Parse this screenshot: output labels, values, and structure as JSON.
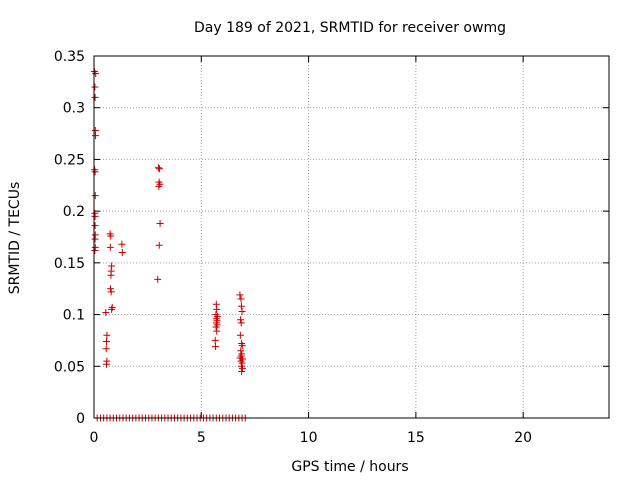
{
  "chart_data": {
    "type": "scatter",
    "title": "Day 189 of 2021, SRMTID for receiver owmg",
    "xlabel": "GPS time / hours",
    "ylabel": "SRMTID / TECUs",
    "xlim": [
      0,
      24
    ],
    "ylim": [
      0,
      0.35
    ],
    "xticks": [
      0,
      5,
      10,
      15,
      20
    ],
    "xtick_labels": [
      "0",
      "5",
      "10",
      "15",
      "20"
    ],
    "yticks": [
      0,
      0.05,
      0.1,
      0.15,
      0.2,
      0.25,
      0.3,
      0.35
    ],
    "ytick_labels": [
      "0",
      "0.05",
      "0.1",
      "0.15",
      "0.2",
      "0.25",
      "0.3",
      "0.35"
    ],
    "grid": true,
    "marker": "+",
    "marker_color": "#cc0000",
    "axis_color": "#000000",
    "grid_color": "#a0a0a0",
    "series": [
      {
        "values": [
          [
            0.02,
            0.335
          ],
          [
            0.04,
            0.32
          ],
          [
            0.05,
            0.31
          ],
          [
            0.06,
            0.278
          ],
          [
            0.07,
            0.273
          ],
          [
            0.03,
            0.24
          ],
          [
            0.05,
            0.238
          ],
          [
            0.06,
            0.215
          ],
          [
            0.04,
            0.198
          ],
          [
            0.05,
            0.195
          ],
          [
            0.05,
            0.186
          ],
          [
            0.06,
            0.177
          ],
          [
            0.05,
            0.173
          ],
          [
            0.06,
            0.165
          ],
          [
            0.04,
            0.162
          ],
          [
            0.08,
            0.333
          ],
          [
            0.55,
            0.102
          ],
          [
            0.6,
            0.08
          ],
          [
            0.58,
            0.074
          ],
          [
            0.57,
            0.067
          ],
          [
            0.6,
            0.055
          ],
          [
            0.58,
            0.052
          ],
          [
            0.75,
            0.178
          ],
          [
            0.78,
            0.176
          ],
          [
            0.76,
            0.165
          ],
          [
            0.82,
            0.147
          ],
          [
            0.8,
            0.142
          ],
          [
            0.79,
            0.138
          ],
          [
            0.77,
            0.125
          ],
          [
            0.8,
            0.122
          ],
          [
            0.85,
            0.107
          ],
          [
            0.82,
            0.105
          ],
          [
            1.3,
            0.168
          ],
          [
            1.32,
            0.16
          ],
          [
            3.0,
            0.242
          ],
          [
            3.05,
            0.241
          ],
          [
            3.03,
            0.228
          ],
          [
            3.07,
            0.226
          ],
          [
            3.02,
            0.224
          ],
          [
            3.08,
            0.188
          ],
          [
            3.04,
            0.167
          ],
          [
            2.97,
            0.134
          ],
          [
            5.7,
            0.11
          ],
          [
            5.72,
            0.105
          ],
          [
            5.68,
            0.1
          ],
          [
            5.75,
            0.098
          ],
          [
            5.7,
            0.096
          ],
          [
            5.73,
            0.094
          ],
          [
            5.71,
            0.092
          ],
          [
            5.74,
            0.09
          ],
          [
            5.69,
            0.088
          ],
          [
            5.72,
            0.084
          ],
          [
            5.65,
            0.075
          ],
          [
            5.66,
            0.069
          ],
          [
            6.8,
            0.119
          ],
          [
            6.85,
            0.115
          ],
          [
            6.87,
            0.108
          ],
          [
            6.9,
            0.103
          ],
          [
            6.83,
            0.095
          ],
          [
            6.86,
            0.092
          ],
          [
            6.82,
            0.08
          ],
          [
            6.88,
            0.072
          ],
          [
            6.91,
            0.07
          ],
          [
            6.84,
            0.065
          ],
          [
            6.89,
            0.062
          ],
          [
            6.86,
            0.06
          ],
          [
            6.81,
            0.058
          ],
          [
            6.93,
            0.057
          ],
          [
            6.85,
            0.055
          ],
          [
            6.9,
            0.053
          ],
          [
            6.87,
            0.05
          ],
          [
            6.92,
            0.048
          ],
          [
            6.88,
            0.045
          ],
          [
            0.15,
            0.0
          ],
          [
            0.3,
            0.0
          ],
          [
            0.45,
            0.0
          ],
          [
            0.6,
            0.0
          ],
          [
            0.75,
            0.0
          ],
          [
            0.9,
            0.0
          ],
          [
            1.05,
            0.0
          ],
          [
            1.2,
            0.0
          ],
          [
            1.35,
            0.0
          ],
          [
            1.5,
            0.0
          ],
          [
            1.65,
            0.0
          ],
          [
            1.8,
            0.0
          ],
          [
            1.95,
            0.0
          ],
          [
            2.1,
            0.0
          ],
          [
            2.25,
            0.0
          ],
          [
            2.4,
            0.0
          ],
          [
            2.55,
            0.0
          ],
          [
            2.7,
            0.0
          ],
          [
            2.85,
            0.0
          ],
          [
            3.0,
            0.0
          ],
          [
            3.15,
            0.0
          ],
          [
            3.3,
            0.0
          ],
          [
            3.45,
            0.0
          ],
          [
            3.6,
            0.0
          ],
          [
            3.75,
            0.0
          ],
          [
            3.9,
            0.0
          ],
          [
            4.05,
            0.0
          ],
          [
            4.2,
            0.0
          ],
          [
            4.35,
            0.0
          ],
          [
            4.5,
            0.0
          ],
          [
            4.65,
            0.0
          ],
          [
            4.8,
            0.0
          ],
          [
            4.95,
            0.0
          ],
          [
            5.1,
            0.0
          ],
          [
            5.25,
            0.0
          ],
          [
            5.4,
            0.0
          ],
          [
            5.55,
            0.0
          ],
          [
            5.7,
            0.0
          ],
          [
            5.85,
            0.0
          ],
          [
            6.0,
            0.0
          ],
          [
            6.15,
            0.0
          ],
          [
            6.3,
            0.0
          ],
          [
            6.45,
            0.0
          ],
          [
            6.6,
            0.0
          ],
          [
            6.75,
            0.0
          ],
          [
            6.9,
            0.0
          ],
          [
            7.05,
            0.0
          ]
        ]
      }
    ]
  }
}
